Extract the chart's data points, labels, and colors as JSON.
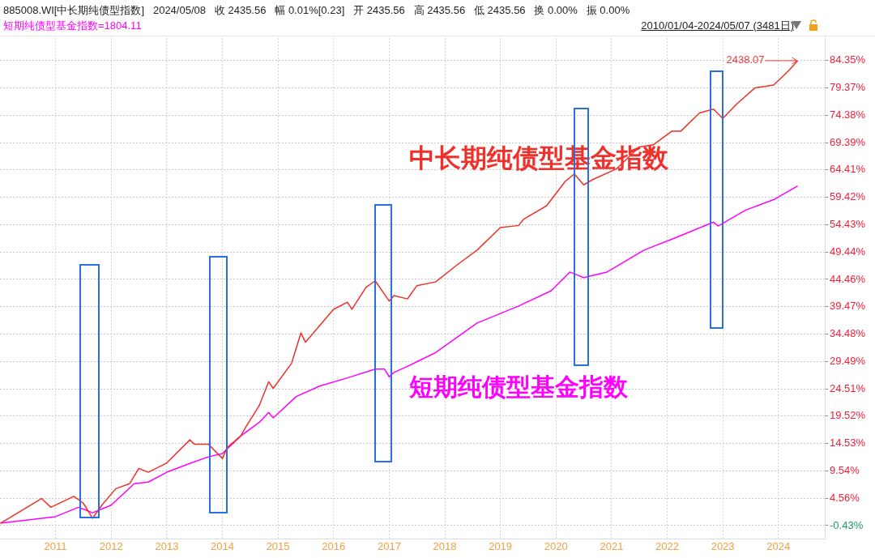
{
  "chart_data": {
    "type": "line",
    "title": "885008.WI[中长期纯债型指数]   2024/05/08   收 2435.56   幅 0.01%[0.23]   开 2435.56   高 2435.56   低 2435.56   换 0.00%   振 0.00%",
    "subtitle": "短期纯债型基金指数=1804.11",
    "annotations": [
      "2010/01/04-2024/05/07 (3481日)",
      "2438.07"
    ],
    "xlim": [
      "2010-01-01",
      "2024-11-01"
    ],
    "xticks": [
      "2011",
      "2012",
      "2013",
      "2014",
      "2015",
      "2016",
      "2017",
      "2018",
      "2019",
      "2020",
      "2021",
      "2022",
      "2023",
      "2024"
    ],
    "ylim": [
      -2.8,
      88.5
    ],
    "yticks": [
      {
        "value": 84.35,
        "label": "84.35%"
      },
      {
        "value": 79.37,
        "label": "79.37%"
      },
      {
        "value": 74.38,
        "label": "74.38%"
      },
      {
        "value": 69.39,
        "label": "69.39%"
      },
      {
        "value": 64.41,
        "label": "64.41%"
      },
      {
        "value": 59.42,
        "label": "59.42%"
      },
      {
        "value": 54.43,
        "label": "54.43%"
      },
      {
        "value": 49.44,
        "label": "49.44%"
      },
      {
        "value": 44.46,
        "label": "44.46%"
      },
      {
        "value": 39.47,
        "label": "39.47%"
      },
      {
        "value": 34.48,
        "label": "34.48%"
      },
      {
        "value": 29.49,
        "label": "29.49%"
      },
      {
        "value": 24.51,
        "label": "24.51%"
      },
      {
        "value": 19.52,
        "label": "19.52%"
      },
      {
        "value": 14.53,
        "label": "14.53%"
      },
      {
        "value": 9.54,
        "label": "9.54%"
      },
      {
        "value": 4.56,
        "label": "4.56%"
      },
      {
        "value": -0.43,
        "label": "-0.43%"
      }
    ],
    "grid": true,
    "legend": false,
    "series": [
      {
        "name": "中长期纯债型基金指数",
        "color": "#f0302a",
        "x": [
          "2010-01-04",
          "2010-10",
          "2010-12",
          "2011-05",
          "2011-07",
          "2011-09",
          "2011-11",
          "2012-02",
          "2012-05",
          "2012-07",
          "2012-09",
          "2013-01",
          "2013-06",
          "2013-07",
          "2013-10",
          "2014-01",
          "2014-02",
          "2014-05",
          "2014-06",
          "2014-09",
          "2014-11",
          "2014-12",
          "2015-04",
          "2015-06",
          "2015-07",
          "2016-01",
          "2016-04",
          "2016-05",
          "2016-08",
          "2016-10",
          "2017-01",
          "2017-02",
          "2017-05",
          "2017-07",
          "2017-11",
          "2018-04",
          "2018-08",
          "2019-01",
          "2019-05",
          "2019-06",
          "2019-11",
          "2020-03",
          "2020-05",
          "2020-07",
          "2020-09",
          "2021-02",
          "2021-07",
          "2021-10",
          "2022-02",
          "2022-04",
          "2022-08",
          "2022-11",
          "2023-01",
          "2023-04",
          "2023-08",
          "2023-12",
          "2024-03",
          "2024-05-07"
        ],
        "values": [
          0,
          4.5,
          2.9,
          4.9,
          3.7,
          0.9,
          3.3,
          6.3,
          7.2,
          10.0,
          9.3,
          11.0,
          15.2,
          14.4,
          14.4,
          11.8,
          13.8,
          15.9,
          17.4,
          21.5,
          25.8,
          24.6,
          29.2,
          34.7,
          33.0,
          39.0,
          40.3,
          39.0,
          43.0,
          44.2,
          40.5,
          41.5,
          40.9,
          43.3,
          44.0,
          47.3,
          49.8,
          53.9,
          54.3,
          55.4,
          57.9,
          62.3,
          63.7,
          61.7,
          62.7,
          64.6,
          68.6,
          69.0,
          71.5,
          71.5,
          74.8,
          75.5,
          73.8,
          76.4,
          79.4,
          79.9,
          82.3,
          84.35
        ]
      },
      {
        "name": "短期纯债型基金指数",
        "color": "#ff00ff",
        "x": [
          "2010-01-04",
          "2011-01",
          "2011-06",
          "2011-07",
          "2011-09",
          "2012-01",
          "2012-06",
          "2012-09",
          "2013-01",
          "2013-06",
          "2013-10",
          "2014-01",
          "2014-05",
          "2014-09",
          "2014-11",
          "2014-12",
          "2015-05",
          "2015-10",
          "2016-04",
          "2016-10",
          "2016-12",
          "2017-01",
          "2017-02",
          "2017-05",
          "2017-11",
          "2018-08",
          "2019-05",
          "2019-12",
          "2020-04",
          "2020-07",
          "2020-12",
          "2021-02",
          "2021-08",
          "2022-03",
          "2022-11",
          "2022-12",
          "2023-06",
          "2023-12",
          "2024-05-07"
        ],
        "values": [
          0,
          1.2,
          2.9,
          2.6,
          1.9,
          3.3,
          7.2,
          7.5,
          9.3,
          10.9,
          12.1,
          12.7,
          15.9,
          18.4,
          20.2,
          19.2,
          23.1,
          25.0,
          26.5,
          28.1,
          28.1,
          26.7,
          27.5,
          28.6,
          31.1,
          36.5,
          39.6,
          42.4,
          45.8,
          44.8,
          45.8,
          46.8,
          49.8,
          52.1,
          54.9,
          54.2,
          57.1,
          59.0,
          61.5
        ]
      }
    ]
  }
}
